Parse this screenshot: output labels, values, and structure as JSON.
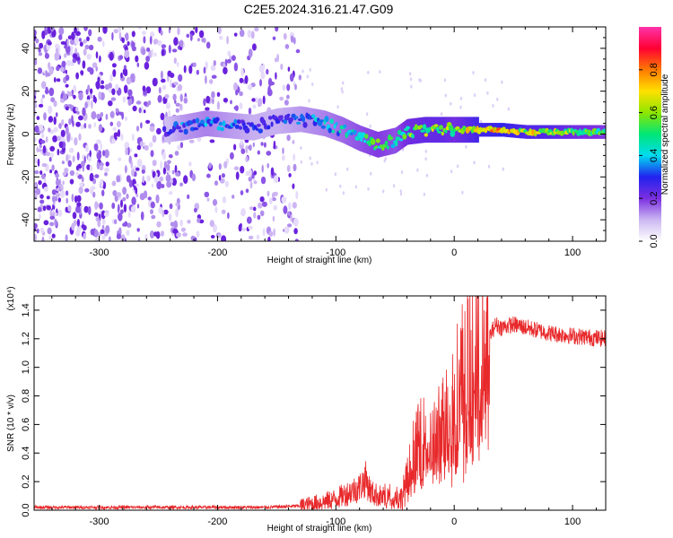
{
  "title": "C2E5.2024.316.21.47.G09",
  "chart_data": [
    {
      "type": "heatmap",
      "panel": "spectrogram",
      "xlabel": "Height of straight line (km)",
      "ylabel": "Frequency (Hz)",
      "xlim": [
        -355,
        128
      ],
      "ylim": [
        -50,
        50
      ],
      "x_ticks": [
        -300,
        -200,
        -100,
        0,
        100
      ],
      "y_ticks": [
        -40,
        -20,
        0,
        20,
        40
      ],
      "colorbar": {
        "label": "Normalized spectral amplitude",
        "range": [
          0,
          1
        ],
        "ticks": [
          0.0,
          0.2,
          0.4,
          0.6,
          0.8
        ],
        "tick_labels": [
          "0.0",
          "0.2",
          "0.4",
          "0.6",
          "0.8"
        ],
        "colormap": [
          "#ffffff",
          "#cbb7f2",
          "#7b2fe0",
          "#2222ee",
          "#00dcf0",
          "#00e676",
          "#8ee600",
          "#ffe000",
          "#ff7a00",
          "#ff0033",
          "#ff33aa"
        ]
      },
      "ridge": {
        "x": [
          -245,
          -230,
          -210,
          -190,
          -170,
          -150,
          -130,
          -110,
          -95,
          -80,
          -65,
          -50,
          -40,
          -25,
          -10,
          0,
          20,
          40,
          60,
          80,
          100,
          128
        ],
        "frequency": [
          2,
          3,
          5,
          4,
          3,
          6,
          7,
          5,
          2,
          -2,
          -5,
          -3,
          1,
          2,
          2,
          2,
          2,
          2,
          1,
          1,
          1,
          1
        ],
        "amplitude": [
          0.25,
          0.35,
          0.4,
          0.35,
          0.3,
          0.3,
          0.35,
          0.4,
          0.45,
          0.5,
          0.55,
          0.5,
          0.6,
          0.65,
          0.65,
          0.6,
          0.75,
          0.8,
          0.7,
          0.7,
          0.6,
          0.55
        ]
      },
      "noise_region_x": [
        -355,
        -130
      ]
    },
    {
      "type": "line",
      "panel": "snr",
      "xlabel": "Height of straight line (km)",
      "ylabel": "SNR (10 * v/v)",
      "y_multiplier": "(x10⁴)",
      "xlim": [
        -355,
        128
      ],
      "ylim": [
        0,
        1.5
      ],
      "x_ticks": [
        -300,
        -200,
        -100,
        0,
        100
      ],
      "y_ticks": [
        0.0,
        0.2,
        0.4,
        0.6,
        0.8,
        1.0,
        1.2,
        1.4
      ],
      "y_tick_labels": [
        "0.0",
        "0.2",
        "0.4",
        "0.6",
        "0.8",
        "1.0",
        "1.2",
        "1.4"
      ],
      "color": "#e8292b",
      "series": [
        {
          "x": [
            -355,
            -300,
            -250,
            -200,
            -160,
            -130,
            -110,
            -100,
            -90,
            -80,
            -75,
            -70,
            -60,
            -50,
            -45,
            -40,
            -35,
            -30,
            -25,
            -20,
            -15,
            -10,
            -5,
            0,
            5,
            10,
            20,
            30,
            35,
            40,
            50,
            60,
            80,
            100,
            128
          ],
          "y": [
            0.02,
            0.02,
            0.02,
            0.02,
            0.02,
            0.03,
            0.06,
            0.08,
            0.12,
            0.16,
            0.22,
            0.12,
            0.09,
            0.1,
            0.08,
            0.2,
            0.38,
            0.45,
            0.5,
            0.45,
            0.5,
            0.58,
            0.7,
            0.78,
            0.88,
            0.98,
            1.08,
            1.22,
            1.3,
            1.28,
            1.3,
            1.28,
            1.24,
            1.22,
            1.2
          ]
        }
      ]
    }
  ]
}
